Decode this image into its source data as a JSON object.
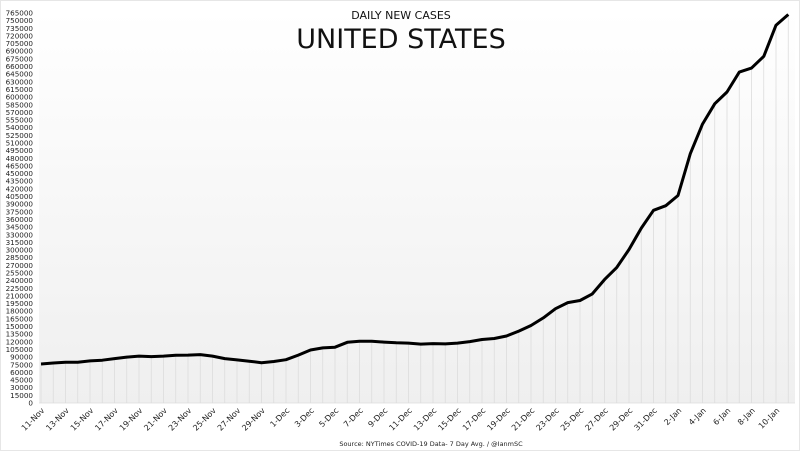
{
  "chart_data": {
    "type": "line",
    "title": "DAILY NEW CASES",
    "subtitle": "UNITED STATES",
    "source": "Source: NYTimes COVID-19 Data- 7 Day Avg. / @IanmSC",
    "xlabel": "",
    "ylabel": "",
    "ylim": [
      0,
      765000
    ],
    "ytick_step": 15000,
    "grid": "vertical",
    "line_color": "#000000",
    "x": [
      "11-Nov",
      "12-Nov",
      "13-Nov",
      "14-Nov",
      "15-Nov",
      "16-Nov",
      "17-Nov",
      "18-Nov",
      "19-Nov",
      "20-Nov",
      "21-Nov",
      "22-Nov",
      "23-Nov",
      "24-Nov",
      "25-Nov",
      "26-Nov",
      "27-Nov",
      "28-Nov",
      "29-Nov",
      "30-Nov",
      "1-Dec",
      "2-Dec",
      "3-Dec",
      "4-Dec",
      "5-Dec",
      "6-Dec",
      "7-Dec",
      "8-Dec",
      "9-Dec",
      "10-Dec",
      "11-Dec",
      "12-Dec",
      "13-Dec",
      "14-Dec",
      "15-Dec",
      "16-Dec",
      "17-Dec",
      "18-Dec",
      "19-Dec",
      "20-Dec",
      "21-Dec",
      "22-Dec",
      "23-Dec",
      "24-Dec",
      "25-Dec",
      "26-Dec",
      "27-Dec",
      "28-Dec",
      "29-Dec",
      "30-Dec",
      "31-Dec",
      "1-Jan",
      "2-Jan",
      "3-Jan",
      "4-Jan",
      "5-Jan",
      "6-Jan",
      "7-Jan",
      "8-Jan",
      "9-Jan",
      "10-Jan",
      "11-Jan"
    ],
    "values": [
      76500,
      78500,
      80000,
      80000,
      82500,
      84000,
      87000,
      90000,
      92000,
      91000,
      92000,
      93500,
      94000,
      95000,
      92000,
      87000,
      84500,
      82000,
      79000,
      81500,
      85000,
      94000,
      104000,
      108000,
      109500,
      119000,
      121000,
      121000,
      119500,
      118000,
      117500,
      115500,
      116500,
      116000,
      117500,
      120500,
      124500,
      126500,
      131500,
      141000,
      152000,
      167000,
      185000,
      197000,
      201000,
      214000,
      242000,
      266000,
      301000,
      343000,
      378000,
      387000,
      407000,
      489000,
      547000,
      587000,
      610000,
      649000,
      657000,
      680000,
      741000,
      762000
    ],
    "xtick_labels": [
      "11-Nov",
      "13-Nov",
      "15-Nov",
      "17-Nov",
      "19-Nov",
      "21-Nov",
      "23-Nov",
      "25-Nov",
      "27-Nov",
      "29-Nov",
      "1-Dec",
      "3-Dec",
      "5-Dec",
      "7-Dec",
      "9-Dec",
      "11-Dec",
      "13-Dec",
      "15-Dec",
      "17-Dec",
      "19-Dec",
      "21-Dec",
      "23-Dec",
      "25-Dec",
      "27-Dec",
      "29-Dec",
      "31-Dec",
      "2-Jan",
      "4-Jan",
      "6-Jan",
      "8-Jan",
      "10-Jan"
    ]
  }
}
